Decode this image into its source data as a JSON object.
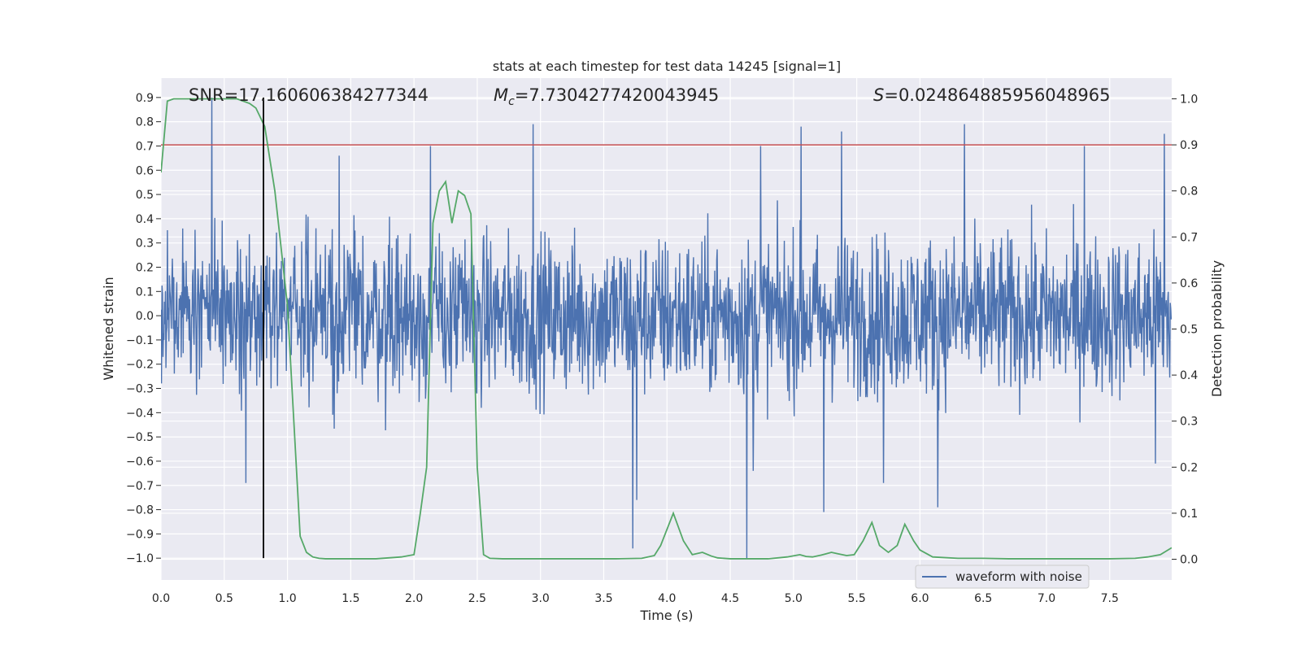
{
  "chart_data": {
    "type": "line",
    "title": "stats at each timestep for test data 14245 [signal=1]",
    "xlabel": "Time (s)",
    "ylabel": "Whitened strain",
    "y2label": "Detection probability",
    "xlim": [
      0.0,
      7.99
    ],
    "ylim": [
      -1.09,
      0.98
    ],
    "y2lim": [
      -0.045,
      1.045
    ],
    "x_ticks": [
      "0.0",
      "0.5",
      "1.0",
      "1.5",
      "2.0",
      "2.5",
      "3.0",
      "3.5",
      "4.0",
      "4.5",
      "5.0",
      "5.5",
      "6.0",
      "6.5",
      "7.0",
      "7.5"
    ],
    "y_ticks": [
      "0.9",
      "0.8",
      "0.7",
      "0.6",
      "0.5",
      "0.4",
      "0.3",
      "0.2",
      "0.1",
      "0.0",
      "−0.1",
      "−0.2",
      "−0.3",
      "−0.4",
      "−0.5",
      "−0.6",
      "−0.7",
      "−0.8",
      "−0.9",
      "−1.0"
    ],
    "y2_ticks": [
      "1.0",
      "0.9",
      "0.8",
      "0.7",
      "0.6",
      "0.5",
      "0.4",
      "0.3",
      "0.2",
      "0.1",
      "0.0"
    ],
    "grid": true,
    "legend": {
      "position": "lower-right",
      "entries": [
        "waveform with noise"
      ]
    },
    "annotations": {
      "snr": "SNR=17.160606384277344",
      "mc_symbol": "M",
      "mc_sub": "c",
      "mc_value": "=7.7304277420043945",
      "s_symbol": "S",
      "s_value": "=0.024864885956048965"
    },
    "threshold_line": {
      "y2": 0.9,
      "color": "#c44e52"
    },
    "event_marker": {
      "x": 0.81,
      "y_range": [
        -1.0,
        0.9
      ],
      "color": "#000000"
    },
    "colors": {
      "waveform": "#4c72b0",
      "probability": "#55a868",
      "threshold": "#c44e52",
      "plot_bg": "#eaeaf2"
    },
    "series": [
      {
        "name": "waveform with noise",
        "axis": "left",
        "description_values": {
          "sample_rate_hz": 256,
          "typical_amplitude": 0.3
        },
        "peaks": [
          [
            0.4,
            0.9
          ],
          [
            0.67,
            0.81
          ],
          [
            1.41,
            0.66
          ],
          [
            2.13,
            0.7
          ],
          [
            2.94,
            0.79
          ],
          [
            4.74,
            0.7
          ],
          [
            5.06,
            0.78
          ],
          [
            5.38,
            0.76
          ],
          [
            6.35,
            0.79
          ],
          [
            7.3,
            0.7
          ],
          [
            7.93,
            0.75
          ]
        ],
        "troughs": [
          [
            0.67,
            -0.69
          ],
          [
            3.73,
            -0.96
          ],
          [
            3.76,
            -0.76
          ],
          [
            4.63,
            -1.0
          ],
          [
            4.68,
            -0.64
          ],
          [
            5.24,
            -0.81
          ],
          [
            5.71,
            -0.69
          ],
          [
            6.14,
            -0.79
          ],
          [
            7.86,
            -0.61
          ]
        ]
      },
      {
        "name": "Detection probability",
        "axis": "right",
        "x": [
          0.0,
          0.05,
          0.1,
          0.2,
          0.3,
          0.4,
          0.5,
          0.6,
          0.7,
          0.75,
          0.82,
          0.9,
          1.0,
          1.05,
          1.1,
          1.15,
          1.2,
          1.25,
          1.3,
          1.4,
          1.5,
          1.6,
          1.7,
          1.8,
          1.9,
          2.0,
          2.05,
          2.1,
          2.15,
          2.2,
          2.25,
          2.3,
          2.35,
          2.4,
          2.45,
          2.5,
          2.55,
          2.6,
          2.7,
          2.8,
          3.0,
          3.2,
          3.4,
          3.6,
          3.8,
          3.9,
          3.95,
          4.05,
          4.13,
          4.2,
          4.28,
          4.35,
          4.4,
          4.5,
          4.6,
          4.8,
          4.95,
          5.05,
          5.1,
          5.15,
          5.22,
          5.3,
          5.35,
          5.42,
          5.48,
          5.55,
          5.62,
          5.68,
          5.75,
          5.82,
          5.88,
          5.95,
          6.0,
          6.1,
          6.3,
          6.5,
          6.7,
          6.9,
          7.1,
          7.3,
          7.5,
          7.7,
          7.8,
          7.9,
          7.99
        ],
        "values": [
          0.84,
          0.995,
          1.0,
          1.0,
          1.0,
          1.0,
          1.0,
          1.0,
          0.99,
          0.98,
          0.94,
          0.8,
          0.55,
          0.3,
          0.05,
          0.015,
          0.005,
          0.002,
          0.001,
          0.001,
          0.001,
          0.001,
          0.001,
          0.003,
          0.005,
          0.01,
          0.1,
          0.2,
          0.73,
          0.8,
          0.82,
          0.73,
          0.8,
          0.79,
          0.75,
          0.2,
          0.01,
          0.002,
          0.001,
          0.001,
          0.001,
          0.001,
          0.001,
          0.001,
          0.002,
          0.008,
          0.03,
          0.1,
          0.04,
          0.01,
          0.015,
          0.007,
          0.003,
          0.001,
          0.001,
          0.001,
          0.005,
          0.01,
          0.006,
          0.005,
          0.009,
          0.015,
          0.012,
          0.008,
          0.01,
          0.04,
          0.08,
          0.03,
          0.015,
          0.03,
          0.076,
          0.04,
          0.02,
          0.005,
          0.002,
          0.002,
          0.001,
          0.001,
          0.001,
          0.001,
          0.001,
          0.002,
          0.005,
          0.01,
          0.025
        ]
      }
    ]
  }
}
